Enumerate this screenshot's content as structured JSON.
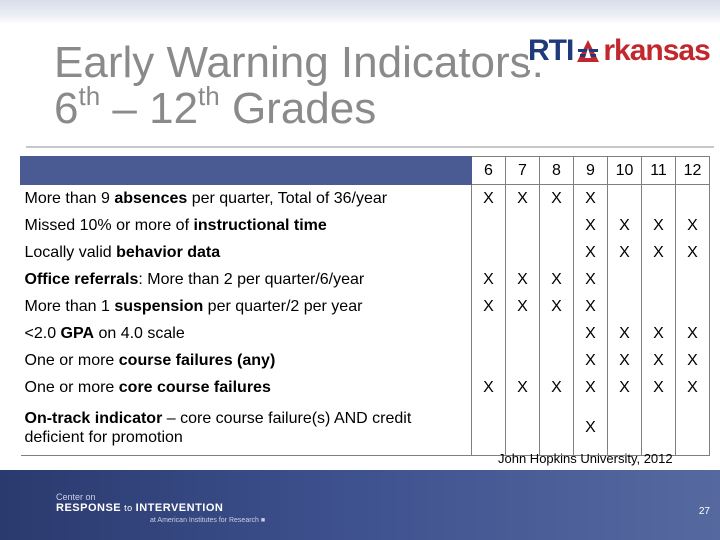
{
  "title": {
    "line1": "Early Warning Indicators:",
    "line2_a": "6",
    "line2_a_sup": "th",
    "line2_dash": " – 12",
    "line2_b_sup": "th",
    "line2_end": " Grades"
  },
  "logo": {
    "left": "RTI",
    "right": "rkansas",
    "icon": "star-a-icon"
  },
  "table": {
    "grades": [
      "6",
      "7",
      "8",
      "9",
      "10",
      "11",
      "12"
    ],
    "rows": [
      {
        "parts": [
          {
            "t": "More than 9 ",
            "b": false
          },
          {
            "t": "absences",
            "b": true
          },
          {
            "t": " per quarter, Total of 36/year",
            "b": false
          }
        ],
        "marks": [
          "X",
          "X",
          "X",
          "X",
          "",
          "",
          ""
        ]
      },
      {
        "parts": [
          {
            "t": "Missed 10% or more of ",
            "b": false
          },
          {
            "t": "instructional time",
            "b": true
          }
        ],
        "marks": [
          "",
          "",
          "",
          "X",
          "X",
          "X",
          "X"
        ]
      },
      {
        "parts": [
          {
            "t": "Locally valid ",
            "b": false
          },
          {
            "t": "behavior data",
            "b": true
          }
        ],
        "marks": [
          "",
          "",
          "",
          "X",
          "X",
          "X",
          "X"
        ]
      },
      {
        "parts": [
          {
            "t": "Office referrals",
            "b": true
          },
          {
            "t": ": More than 2 per quarter/6/year",
            "b": false
          }
        ],
        "marks": [
          "X",
          "X",
          "X",
          "X",
          "",
          "",
          ""
        ]
      },
      {
        "parts": [
          {
            "t": "More than 1 ",
            "b": false
          },
          {
            "t": "suspension",
            "b": true
          },
          {
            "t": " per quarter/2 per year",
            "b": false
          }
        ],
        "marks": [
          "X",
          "X",
          "X",
          "X",
          "",
          "",
          ""
        ]
      },
      {
        "parts": [
          {
            "t": "<2.0 ",
            "b": false
          },
          {
            "t": "GPA",
            "b": true
          },
          {
            "t": " on 4.0 scale",
            "b": false
          }
        ],
        "marks": [
          "",
          "",
          "",
          "X",
          "X",
          "X",
          "X"
        ]
      },
      {
        "parts": [
          {
            "t": "One or more ",
            "b": false
          },
          {
            "t": "course failures (any)",
            "b": true
          }
        ],
        "marks": [
          "",
          "",
          "",
          "X",
          "X",
          "X",
          "X"
        ]
      },
      {
        "parts": [
          {
            "t": "One or more ",
            "b": false
          },
          {
            "t": "core course failures",
            "b": true
          }
        ],
        "marks": [
          "X",
          "X",
          "X",
          "X",
          "X",
          "X",
          "X"
        ]
      },
      {
        "parts": [
          {
            "t": "On-track indicator",
            "b": true
          },
          {
            "t": " – core course failure(s) AND credit deficient for promotion",
            "b": false
          }
        ],
        "marks": [
          "",
          "",
          "",
          "X",
          "",
          "",
          ""
        ]
      }
    ]
  },
  "citation": "John Hopkins University, 2012",
  "footer": {
    "line1": "Center on",
    "line2_a": "RESPONSE",
    "line2_to": " to ",
    "line2_b": "INTERVENTION",
    "line3": "at American Institutes for Research ■",
    "page_number": "27"
  }
}
